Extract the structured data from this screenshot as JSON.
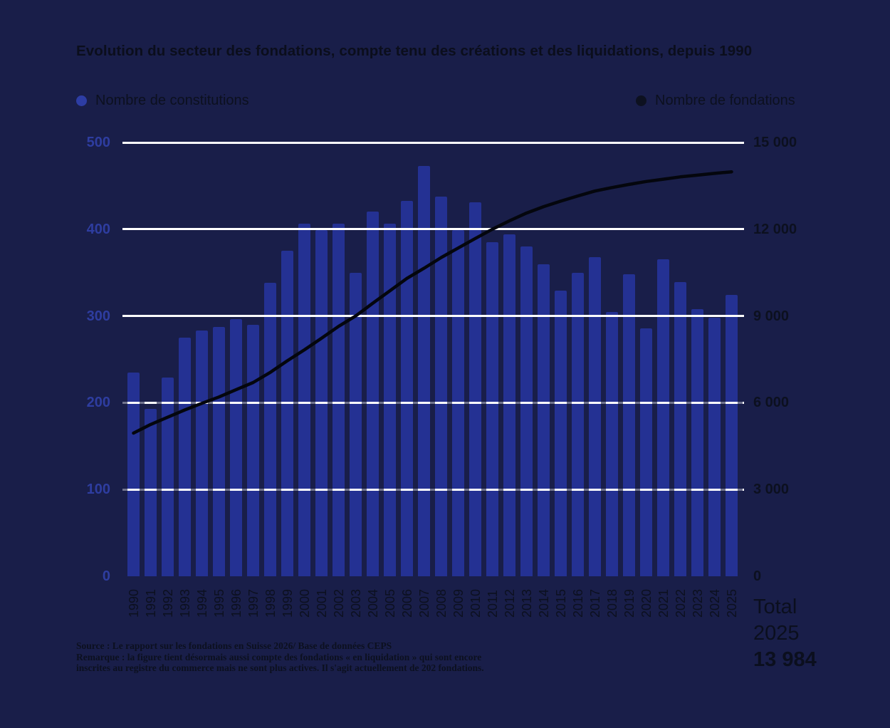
{
  "title": "Evolution du secteur des fondations, compte tenu des créations et des liquidations, depuis 1990",
  "legend": {
    "constitutions": {
      "label": "Nombre de constitutions",
      "color": "#2d3da4"
    },
    "fondations": {
      "label": "Nombre de fondations",
      "color": "#0d1120"
    }
  },
  "total_box": {
    "line1": "Total",
    "line2": "2025",
    "line3": "13 984"
  },
  "footer": {
    "source": "Source : Le rapport sur les fondations en Suisse 2026/ Base de données CEPS",
    "remark": "Remarque : la figure tient désormais aussi compte des fondations « en liquidation » qui sont encore inscrites au registre du commerce mais ne sont plus actives. Il s'agit actuellement de 202 fondations."
  },
  "colors": {
    "background": "#191e49",
    "bar": "#243193",
    "line": "#04060d",
    "gridline": "#ffffff",
    "left_axis_text": "#2e3da0",
    "right_axis_text": "#0c101f"
  },
  "chart_data": {
    "type": "bar+line",
    "title": "Evolution du secteur des fondations, compte tenu des créations et des liquidations, depuis 1990",
    "categories": [
      "1990",
      "1991",
      "1992",
      "1993",
      "1994",
      "1995",
      "1996",
      "1997",
      "1998",
      "1999",
      "2000",
      "2001",
      "2002",
      "2003",
      "2004",
      "2005",
      "2006",
      "2007",
      "2008",
      "2009",
      "2010",
      "2011",
      "2012",
      "2013",
      "2014",
      "2015",
      "2016",
      "2017",
      "2018",
      "2019",
      "2020",
      "2021",
      "2022",
      "2023",
      "2024",
      "2025"
    ],
    "series": [
      {
        "name": "Nombre de constitutions",
        "type": "bar",
        "axis": "left",
        "color": "#243193",
        "values": [
          235,
          193,
          229,
          275,
          283,
          287,
          296,
          290,
          338,
          375,
          406,
          399,
          406,
          350,
          420,
          406,
          433,
          473,
          438,
          399,
          431,
          385,
          394,
          380,
          360,
          329,
          350,
          368,
          305,
          348,
          286,
          365,
          339,
          308,
          298,
          324
        ]
      },
      {
        "name": "Nombre de fondations",
        "type": "line",
        "axis": "right",
        "color": "#04060d",
        "values": [
          4950,
          5250,
          5500,
          5750,
          5980,
          6200,
          6450,
          6700,
          7050,
          7450,
          7830,
          8230,
          8640,
          9000,
          9440,
          9870,
          10300,
          10650,
          11020,
          11350,
          11680,
          12000,
          12290,
          12560,
          12780,
          12970,
          13150,
          13320,
          13440,
          13550,
          13650,
          13730,
          13810,
          13870,
          13930,
          13984
        ]
      }
    ],
    "left_axis": {
      "range": [
        0,
        500
      ],
      "tick_values": [
        0,
        100,
        200,
        300,
        400,
        500
      ],
      "tick_labels": [
        "0",
        "100",
        "200",
        "300",
        "400",
        "500"
      ]
    },
    "right_axis": {
      "range": [
        0,
        15000
      ],
      "tick_values": [
        0,
        3000,
        6000,
        9000,
        12000,
        15000
      ],
      "tick_labels": [
        "0",
        "3 000",
        "6 000",
        "9 000",
        "12 000",
        "15 000"
      ]
    },
    "grid": "horizontal white lines at left-axis ticks 100–500",
    "legend_position": "top",
    "annotations": [
      "Total 2025 13 984"
    ]
  }
}
